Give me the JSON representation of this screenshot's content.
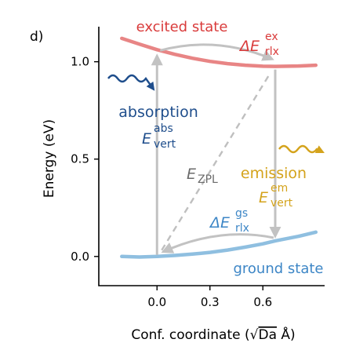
{
  "panel_label": "d)",
  "colors": {
    "excited": "#e88585",
    "ground": "#8fbfe0",
    "arrow_gray": "#c2c2c2",
    "zpl_gray": "#bfbfbf",
    "absorption_blue": "#1f4e8c",
    "emission_gold": "#d4a31c",
    "relax_blue": "#3d86c6",
    "excited_label_red": "#d93b3b",
    "zpl_text": "#6b6b6b"
  },
  "chart_data": {
    "type": "line",
    "xlabel": "Conf. coordinate (√Da Å)",
    "xlabel_pre": "Conf. coordinate (",
    "xlabel_sqrt": "√",
    "xlabel_da": "Da",
    "xlabel_post": " Å)",
    "ylabel": "Energy (eV)",
    "xlim": [
      -0.33,
      0.95
    ],
    "ylim": [
      -0.15,
      1.18
    ],
    "xticks": [
      0.0,
      0.3,
      0.6
    ],
    "xtick_labels": [
      "0.0",
      "0.3",
      "0.6"
    ],
    "yticks": [
      0.0,
      0.5,
      1.0
    ],
    "ytick_labels": [
      "0.0",
      "0.5",
      "1.0"
    ],
    "grid": false,
    "series": [
      {
        "name": "excited state",
        "x": [
          -0.2,
          -0.1,
          0.0,
          0.1,
          0.2,
          0.3,
          0.4,
          0.5,
          0.6,
          0.67,
          0.8,
          0.9
        ],
        "y": [
          1.12,
          1.09,
          1.062,
          1.038,
          1.018,
          1.002,
          0.99,
          0.982,
          0.977,
          0.976,
          0.978,
          0.982
        ]
      },
      {
        "name": "ground state",
        "x": [
          -0.2,
          -0.1,
          0.0,
          0.1,
          0.2,
          0.3,
          0.4,
          0.5,
          0.6,
          0.67,
          0.8,
          0.9
        ],
        "y": [
          0.0,
          -0.003,
          0.0,
          0.005,
          0.012,
          0.021,
          0.033,
          0.048,
          0.065,
          0.08,
          0.103,
          0.125
        ]
      }
    ],
    "annotations": {
      "excited_state": "excited state",
      "ground_state": "ground state",
      "absorption": "absorption",
      "emission": "emission",
      "e_vert_abs_main": "E",
      "e_vert_abs_sup": "abs",
      "e_vert_abs_sub": "vert",
      "e_vert_em_main": "E",
      "e_vert_em_sup": "em",
      "e_vert_em_sub": "vert",
      "delta_ex_main": "ΔE",
      "delta_ex_sup": "ex",
      "delta_ex_sub": "rlx",
      "delta_gs_main": "ΔE",
      "delta_gs_sup": "gs",
      "delta_gs_sub": "rlx",
      "e_zpl_main": "E",
      "e_zpl_sub": "ZPL"
    },
    "transitions": {
      "absorption": {
        "x": 0.0,
        "y_from": 0.0,
        "y_to": 1.062
      },
      "emission": {
        "x": 0.67,
        "y_from": 0.976,
        "y_to": 0.08
      },
      "zpl": {
        "x_from": 0.0,
        "y_from": 0.0,
        "x_to": 0.67,
        "y_to": 0.976
      },
      "relax_excited": {
        "x_from": 0.0,
        "x_to": 0.67,
        "y_level": 1.062
      },
      "relax_ground": {
        "x_from": 0.67,
        "x_to": 0.0,
        "y_level": 0.08
      }
    }
  }
}
